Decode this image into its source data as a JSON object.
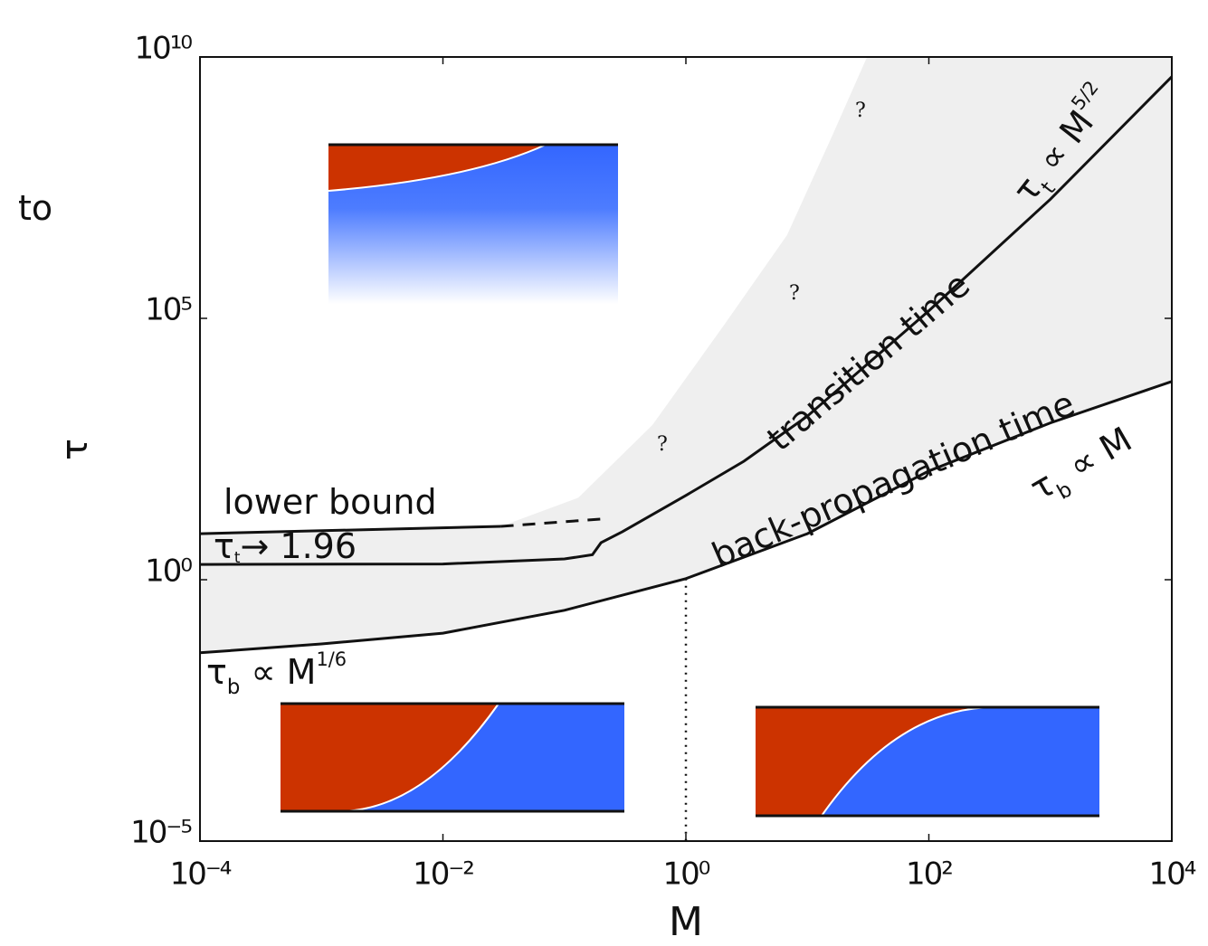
{
  "chart_data": {
    "type": "line",
    "x_label": "M",
    "y_label": "τ",
    "log_x": true,
    "log_y": true,
    "xlim": [
      0.0001,
      10000
    ],
    "ylim": [
      1e-05,
      10000000000
    ],
    "xticks": [
      {
        "value": 0.0001,
        "label": "10⁻⁴"
      },
      {
        "value": 0.01,
        "label": "10⁻²"
      },
      {
        "value": 1,
        "label": "10⁰"
      },
      {
        "value": 100,
        "label": "10²"
      },
      {
        "value": 10000,
        "label": "10⁴"
      }
    ],
    "yticks": [
      {
        "value": 1e-05,
        "label": "10⁻⁵"
      },
      {
        "value": 1,
        "label": "10⁰"
      },
      {
        "value": 100000,
        "label": "10⁵"
      },
      {
        "value": 10000000000,
        "label": "10¹⁰"
      }
    ],
    "vline": {
      "x": 1,
      "style": "dotted"
    },
    "shaded_region": {
      "color": "#efefef",
      "x": [
        0.0001,
        0.03,
        0.13,
        0.53,
        2.04,
        6.8,
        16,
        31
      ],
      "values": [
        7.6,
        10.5,
        37,
        910,
        72000,
        3900000,
        310000000,
        10000000000
      ]
    },
    "series": [
      {
        "color": "#111111",
        "style": "solid",
        "x": [
          0.0001,
          0.001,
          0.01,
          0.1,
          1,
          10,
          100,
          1000,
          10000
        ],
        "values": [
          0.04,
          0.059,
          0.095,
          0.26,
          1.05,
          7.6,
          120,
          1000,
          6200
        ]
      },
      {
        "color": "#111111",
        "style": "solid",
        "x": [
          0.0001,
          0.01,
          0.1,
          0.17,
          0.2,
          0.3,
          1,
          3,
          10,
          100,
          1000,
          10000
        ],
        "values": [
          1.96,
          2.0,
          2.5,
          3.0,
          5.1,
          8.3,
          41,
          185,
          1350,
          140000,
          19000000,
          4200000000
        ]
      },
      {
        "color": "#111111",
        "style": "solid",
        "x": [
          0.0001,
          0.03
        ],
        "values": [
          7.6,
          10.5
        ]
      },
      {
        "color": "#111111",
        "style": "dashed",
        "x": [
          0.03,
          0.2
        ],
        "values": [
          10.5,
          14.5
        ]
      }
    ],
    "annotations": [
      {
        "parts": [
          {
            "text": "lower bound"
          }
        ]
      },
      {
        "parts": [
          {
            "text": "τ"
          },
          {
            "text": "t",
            "sub": true
          },
          {
            "text": "→ 1.96"
          }
        ]
      },
      {
        "parts": [
          {
            "text": "transition time"
          }
        ]
      },
      {
        "parts": [
          {
            "text": "back-propagation time"
          }
        ]
      },
      {
        "parts": [
          {
            "text": "τ"
          },
          {
            "text": "t",
            "sub": true
          },
          {
            "text": " ∝ M"
          },
          {
            "text": "5/2",
            "sup": true
          }
        ]
      },
      {
        "parts": [
          {
            "text": "τ"
          },
          {
            "text": "b",
            "sub": true
          },
          {
            "text": " ∝ M"
          }
        ]
      },
      {
        "parts": [
          {
            "text": "τ"
          },
          {
            "text": "b",
            "sub": true
          },
          {
            "text": " ∝ M"
          },
          {
            "text": "1/6",
            "sup": true
          }
        ]
      },
      {
        "parts": [
          {
            "text": "?"
          }
        ]
      },
      {
        "parts": [
          {
            "text": "?"
          }
        ]
      },
      {
        "parts": [
          {
            "text": "?"
          }
        ]
      },
      {
        "parts": [
          {
            "text": "to"
          }
        ]
      }
    ]
  }
}
